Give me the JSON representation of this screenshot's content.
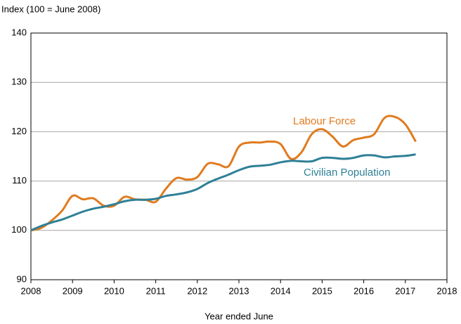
{
  "chart_data": {
    "type": "line",
    "y_axis_label": "Index (100 = June 2008)",
    "x_axis_label": "Year ended June",
    "x": [
      2008,
      2008.25,
      2008.5,
      2008.75,
      2009,
      2009.25,
      2009.5,
      2009.75,
      2010,
      2010.25,
      2010.5,
      2010.75,
      2011,
      2011.25,
      2011.5,
      2011.75,
      2012,
      2012.25,
      2012.5,
      2012.75,
      2013,
      2013.25,
      2013.5,
      2013.75,
      2014,
      2014.25,
      2014.5,
      2014.75,
      2015,
      2015.25,
      2015.5,
      2015.75,
      2016,
      2016.25,
      2016.5,
      2016.75,
      2017,
      2017.25
    ],
    "series": [
      {
        "name": "Labour Force",
        "color": "#e07b1f",
        "values": [
          100,
          100.5,
          102,
          104,
          107,
          106.3,
          106.5,
          105,
          105,
          106.8,
          106.3,
          106.2,
          105.8,
          108.5,
          110.6,
          110.3,
          110.8,
          113.5,
          113.4,
          113,
          117,
          117.8,
          117.8,
          118,
          117.5,
          114.5,
          115.8,
          119.5,
          120.5,
          119,
          117,
          118.3,
          118.8,
          119.5,
          122.8,
          123,
          121.5,
          118
        ]
      },
      {
        "name": "Civilian Population",
        "color": "#2e8097",
        "values": [
          100,
          100.9,
          101.6,
          102.2,
          103,
          103.8,
          104.4,
          104.8,
          105.3,
          105.9,
          106.2,
          106.2,
          106.4,
          107,
          107.3,
          107.7,
          108.4,
          109.6,
          110.5,
          111.3,
          112.2,
          112.9,
          113.1,
          113.3,
          113.8,
          114.1,
          114,
          114,
          114.7,
          114.7,
          114.5,
          114.7,
          115.2,
          115.2,
          114.8,
          115,
          115.1,
          115.4
        ]
      }
    ],
    "xlim": [
      2008,
      2018
    ],
    "xticks": [
      2008,
      2009,
      2010,
      2011,
      2012,
      2013,
      2014,
      2015,
      2016,
      2017,
      2018
    ],
    "ylim": [
      90,
      140
    ],
    "yticks": [
      90,
      100,
      110,
      120,
      130,
      140
    ],
    "grid": true
  }
}
